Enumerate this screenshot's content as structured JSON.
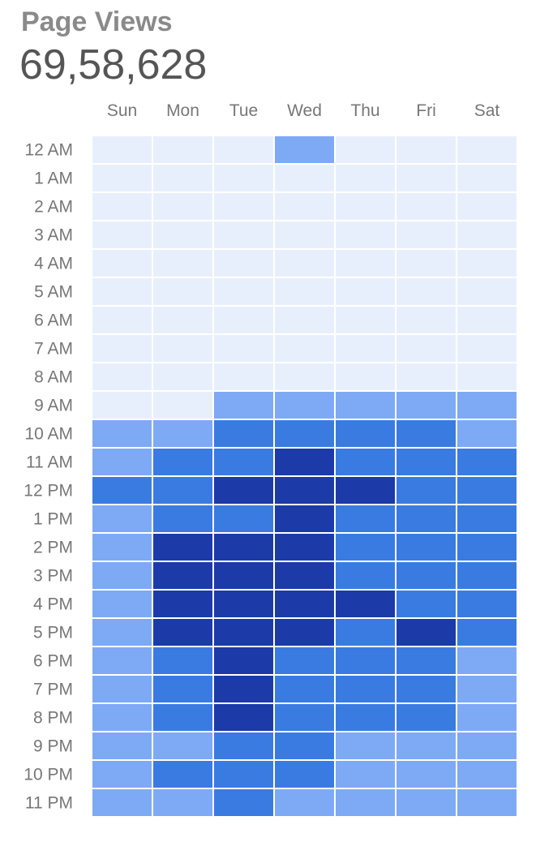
{
  "header": {
    "title": "Page Views",
    "total": "69,58,628"
  },
  "colors": {
    "level0": "#e8effc",
    "level1": "#7ea9f5",
    "level2": "#3a7be2",
    "level3": "#1c3aa8"
  },
  "chart_data": {
    "type": "heatmap",
    "title": "Page Views",
    "total": "69,58,628",
    "columns": [
      "Sun",
      "Mon",
      "Tue",
      "Wed",
      "Thu",
      "Fri",
      "Sat"
    ],
    "rows": [
      "12 AM",
      "1 AM",
      "2 AM",
      "3 AM",
      "4 AM",
      "5 AM",
      "6 AM",
      "7 AM",
      "8 AM",
      "9 AM",
      "10 AM",
      "11 AM",
      "12 PM",
      "1 PM",
      "2 PM",
      "3 PM",
      "4 PM",
      "5 PM",
      "6 PM",
      "7 PM",
      "8 PM",
      "9 PM",
      "10 PM",
      "11 PM"
    ],
    "scale": "intensity level 0 (lowest) to 3 (highest)",
    "values": [
      [
        0,
        0,
        0,
        1,
        0,
        0,
        0
      ],
      [
        0,
        0,
        0,
        0,
        0,
        0,
        0
      ],
      [
        0,
        0,
        0,
        0,
        0,
        0,
        0
      ],
      [
        0,
        0,
        0,
        0,
        0,
        0,
        0
      ],
      [
        0,
        0,
        0,
        0,
        0,
        0,
        0
      ],
      [
        0,
        0,
        0,
        0,
        0,
        0,
        0
      ],
      [
        0,
        0,
        0,
        0,
        0,
        0,
        0
      ],
      [
        0,
        0,
        0,
        0,
        0,
        0,
        0
      ],
      [
        0,
        0,
        0,
        0,
        0,
        0,
        0
      ],
      [
        0,
        0,
        1,
        1,
        1,
        1,
        1
      ],
      [
        1,
        1,
        2,
        2,
        2,
        2,
        1
      ],
      [
        1,
        2,
        2,
        3,
        2,
        2,
        2
      ],
      [
        2,
        2,
        3,
        3,
        3,
        2,
        2
      ],
      [
        1,
        2,
        2,
        3,
        2,
        2,
        2
      ],
      [
        1,
        3,
        3,
        3,
        2,
        2,
        2
      ],
      [
        1,
        3,
        3,
        3,
        2,
        2,
        2
      ],
      [
        1,
        3,
        3,
        3,
        3,
        2,
        2
      ],
      [
        1,
        3,
        3,
        3,
        2,
        3,
        2
      ],
      [
        1,
        2,
        3,
        2,
        2,
        2,
        1
      ],
      [
        1,
        2,
        3,
        2,
        2,
        2,
        1
      ],
      [
        1,
        2,
        3,
        2,
        2,
        2,
        1
      ],
      [
        1,
        1,
        2,
        2,
        1,
        1,
        1
      ],
      [
        1,
        2,
        2,
        2,
        1,
        1,
        1
      ],
      [
        1,
        1,
        2,
        1,
        1,
        1,
        1
      ]
    ]
  }
}
